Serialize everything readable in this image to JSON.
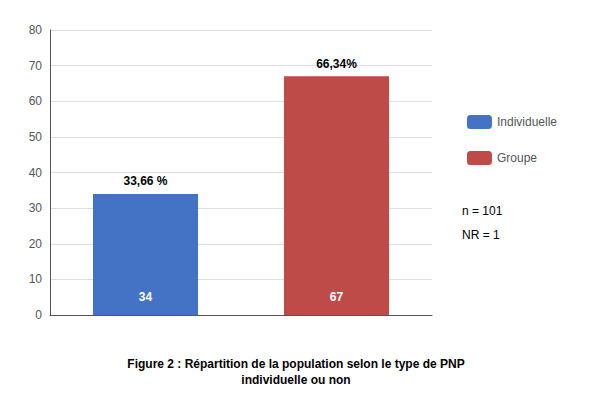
{
  "chart_data": {
    "type": "bar",
    "title": "Figure 2 : Répartition de la population selon le type de PNP",
    "subtitle": "individuelle ou non",
    "categories": [
      "Individuelle",
      "Groupe"
    ],
    "values": [
      34,
      67
    ],
    "colors": [
      "#4472C4",
      "#BE4B48"
    ],
    "ylim": [
      0,
      80
    ],
    "yticks": [
      0,
      10,
      20,
      30,
      40,
      50,
      60,
      70,
      80
    ],
    "grid": true,
    "legend": "right",
    "data_labels": true,
    "tick_labels": "y",
    "annotations": [
      {
        "text": "33,66 %",
        "category": "Individuelle"
      },
      {
        "text": "66,34%",
        "category": "Groupe"
      },
      {
        "text": "n = 101"
      },
      {
        "text": "NR = 1"
      }
    ]
  }
}
